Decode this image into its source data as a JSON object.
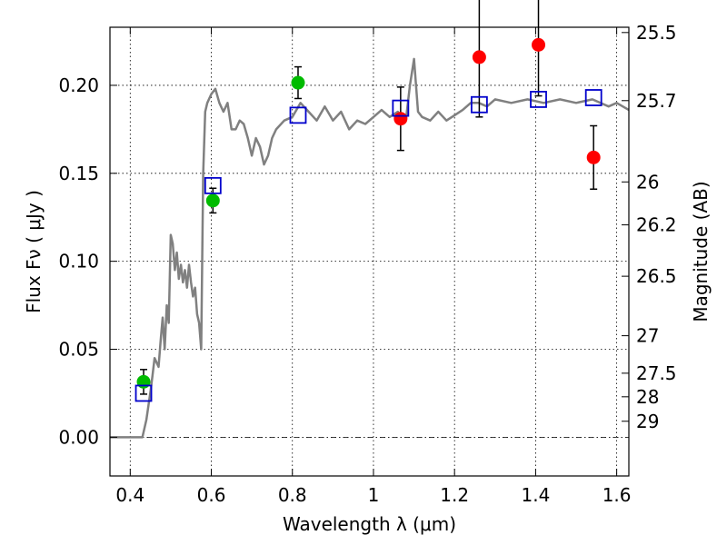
{
  "chart_data": {
    "type": "scatter",
    "xlabel": "Wavelength  λ (μm)",
    "ylabel": "Flux  Fν  ( μJy )",
    "y2label": "Magnitude (AB)",
    "xlim": [
      0.35,
      1.63
    ],
    "ylim": [
      -0.022,
      0.233
    ],
    "x_ticks": [
      0.4,
      0.6,
      0.8,
      1.0,
      1.2,
      1.4,
      1.6
    ],
    "x_tick_labels": [
      "0.4",
      "0.6",
      "0.8",
      "1",
      "1.2",
      "1.4",
      "1.6"
    ],
    "y_ticks": [
      0.0,
      0.05,
      0.1,
      0.15,
      0.2
    ],
    "y_tick_labels": [
      "0.00",
      "0.05",
      "0.10",
      "0.15",
      "0.20"
    ],
    "mag_ticks": [
      {
        "label": "25.5",
        "flux": 0.23
      },
      {
        "label": "25.7",
        "flux": 0.1913
      },
      {
        "label": "26",
        "flux": 0.1451
      },
      {
        "label": "26.2",
        "flux": 0.1207
      },
      {
        "label": "26.5",
        "flux": 0.0915
      },
      {
        "label": "27",
        "flux": 0.0577
      },
      {
        "label": "27.5",
        "flux": 0.0364
      },
      {
        "label": "28",
        "flux": 0.023
      },
      {
        "label": "29",
        "flux": 0.0091
      }
    ],
    "grid": true,
    "colors": {
      "model": "#808080",
      "green": "#00bb00",
      "red": "#ff0000",
      "square": "#0000cc",
      "errorbar": "#000000"
    },
    "series": [
      {
        "name": "model SED",
        "kind": "line",
        "x": [
          0.35,
          0.43,
          0.44,
          0.45,
          0.455,
          0.46,
          0.47,
          0.475,
          0.48,
          0.485,
          0.49,
          0.495,
          0.5,
          0.505,
          0.51,
          0.515,
          0.52,
          0.525,
          0.53,
          0.535,
          0.54,
          0.545,
          0.55,
          0.555,
          0.56,
          0.565,
          0.57,
          0.575,
          0.58,
          0.585,
          0.59,
          0.6,
          0.61,
          0.62,
          0.63,
          0.64,
          0.65,
          0.66,
          0.67,
          0.68,
          0.69,
          0.7,
          0.71,
          0.72,
          0.73,
          0.74,
          0.75,
          0.76,
          0.78,
          0.8,
          0.82,
          0.84,
          0.86,
          0.88,
          0.9,
          0.92,
          0.94,
          0.96,
          0.98,
          1.0,
          1.02,
          1.04,
          1.06,
          1.08,
          1.09,
          1.1,
          1.11,
          1.12,
          1.14,
          1.16,
          1.18,
          1.2,
          1.22,
          1.24,
          1.26,
          1.28,
          1.3,
          1.34,
          1.38,
          1.42,
          1.46,
          1.5,
          1.54,
          1.58,
          1.6,
          1.63
        ],
        "y": [
          0.0,
          0.0,
          0.01,
          0.026,
          0.035,
          0.045,
          0.04,
          0.055,
          0.068,
          0.05,
          0.075,
          0.065,
          0.115,
          0.11,
          0.095,
          0.105,
          0.09,
          0.098,
          0.088,
          0.095,
          0.085,
          0.098,
          0.088,
          0.08,
          0.085,
          0.07,
          0.065,
          0.05,
          0.15,
          0.185,
          0.19,
          0.195,
          0.198,
          0.19,
          0.185,
          0.19,
          0.175,
          0.175,
          0.18,
          0.178,
          0.17,
          0.16,
          0.17,
          0.165,
          0.155,
          0.16,
          0.17,
          0.175,
          0.18,
          0.182,
          0.19,
          0.185,
          0.18,
          0.188,
          0.18,
          0.185,
          0.175,
          0.18,
          0.178,
          0.182,
          0.186,
          0.182,
          0.185,
          0.18,
          0.2,
          0.215,
          0.185,
          0.182,
          0.18,
          0.185,
          0.18,
          0.183,
          0.186,
          0.19,
          0.19,
          0.188,
          0.192,
          0.19,
          0.192,
          0.19,
          0.192,
          0.19,
          0.192,
          0.188,
          0.19,
          0.186
        ]
      },
      {
        "name": "green points",
        "kind": "circle",
        "x": [
          0.433,
          0.604,
          0.814
        ],
        "y": [
          0.0315,
          0.1345,
          0.2015
        ],
        "err": [
          0.007,
          0.007,
          0.009
        ]
      },
      {
        "name": "red points",
        "kind": "circle",
        "x": [
          1.067,
          1.261,
          1.407,
          1.543
        ],
        "y": [
          0.181,
          0.216,
          0.223,
          0.159
        ],
        "err": [
          0.018,
          0.034,
          0.029,
          0.018
        ]
      },
      {
        "name": "model photometry",
        "kind": "square",
        "x": [
          0.433,
          0.604,
          0.814,
          1.067,
          1.261,
          1.407,
          1.543
        ],
        "y": [
          0.025,
          0.143,
          0.183,
          0.187,
          0.189,
          0.192,
          0.193
        ]
      }
    ]
  }
}
